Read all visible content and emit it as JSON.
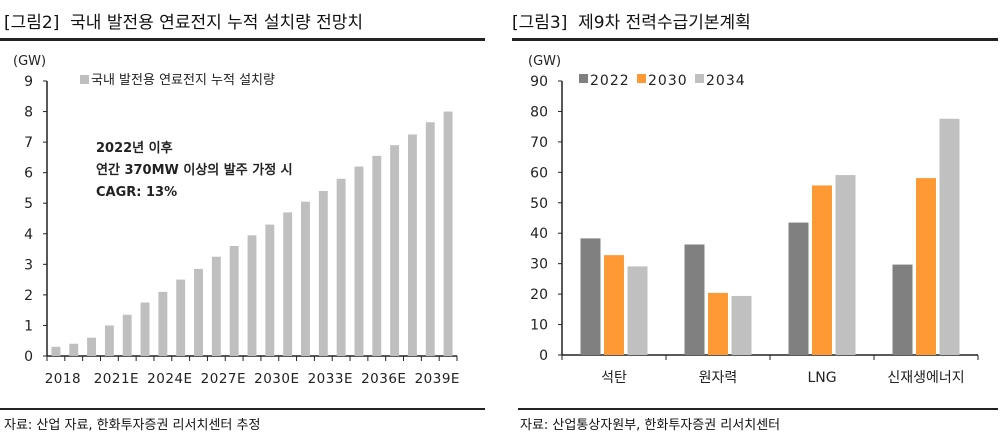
{
  "left": {
    "title": "[그림2]  국내 발전용 연료전지 누적 설치량 전망치",
    "source": "자료: 산업 자료, 한화투자증권 리서치센터 추정"
  },
  "right": {
    "title": "[그림3]  제9차 전력수급기본계획",
    "source": "자료: 산업통상자원부, 한화투자증권 리서치센터"
  },
  "chart_data": [
    {
      "type": "bar",
      "unit_label": "(GW)",
      "categories": [
        "2018",
        "2019",
        "2020",
        "2021E",
        "2022E",
        "2023E",
        "2024E",
        "2025E",
        "2026E",
        "2027E",
        "2028E",
        "2029E",
        "2030E",
        "2031E",
        "2032E",
        "2033E",
        "2034E",
        "2035E",
        "2036E",
        "2037E",
        "2038E",
        "2039E",
        "2040E"
      ],
      "tick_labels": [
        "2018",
        "2021E",
        "2024E",
        "2027E",
        "2030E",
        "2033E",
        "2036E",
        "2039E"
      ],
      "series": [
        {
          "name": "국내 발전용 연료전지 누적 설치량",
          "color": "#bfbfbf",
          "values": [
            0.3,
            0.4,
            0.6,
            1.0,
            1.35,
            1.75,
            2.1,
            2.5,
            2.85,
            3.25,
            3.6,
            3.95,
            4.3,
            4.7,
            5.05,
            5.4,
            5.8,
            6.2,
            6.55,
            6.9,
            7.25,
            7.65,
            8.0
          ]
        }
      ],
      "ylim": [
        0,
        9
      ],
      "yticks": [
        0,
        1,
        2,
        3,
        4,
        5,
        6,
        7,
        8,
        9
      ],
      "legend": "top-left",
      "annotation": [
        "2022년  이후",
        "연간 370MW 이상의 발주 가정 시",
        "CAGR: 13%"
      ],
      "grid": false
    },
    {
      "type": "bar",
      "unit_label": "(GW)",
      "categories": [
        "석탄",
        "원자력",
        "LNG",
        "신재생에너지"
      ],
      "series": [
        {
          "name": "2022",
          "color": "#808080",
          "values": [
            38.3,
            36.3,
            43.5,
            29.7
          ]
        },
        {
          "name": "2030",
          "color": "#ff9933",
          "values": [
            32.8,
            20.4,
            55.7,
            58.1
          ]
        },
        {
          "name": "2034",
          "color": "#c0c0c0",
          "values": [
            29.1,
            19.4,
            59.1,
            77.6
          ]
        }
      ],
      "ylim": [
        0,
        90
      ],
      "yticks": [
        0,
        10,
        20,
        30,
        40,
        50,
        60,
        70,
        80,
        90
      ],
      "legend": "top-left",
      "grid": false
    }
  ]
}
